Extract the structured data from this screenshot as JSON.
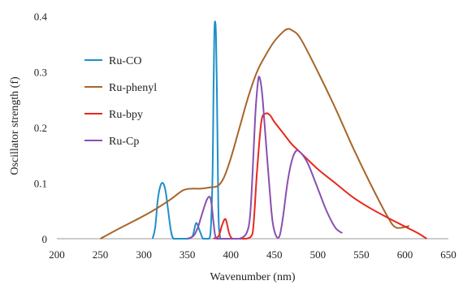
{
  "chart_data": {
    "type": "line",
    "xlabel": "Wavenumber (nm)",
    "ylabel": "Oscillator strength (f)",
    "xlim": [
      200,
      650
    ],
    "ylim": [
      0,
      0.4
    ],
    "x_ticks": [
      200,
      250,
      300,
      350,
      400,
      450,
      500,
      550,
      600,
      650
    ],
    "y_ticks": [
      0,
      0.1,
      0.2,
      0.3,
      0.4
    ],
    "grid": false,
    "legend_position": "left",
    "series": [
      {
        "name": "Ru-CO",
        "color": "#1f8fc8",
        "x": [
          310,
          313,
          316,
          319,
          322,
          325,
          328,
          331,
          334,
          340,
          350,
          356,
          360,
          364,
          368,
          372,
          375,
          377,
          379,
          380,
          381,
          382,
          383,
          384,
          385,
          386,
          388,
          390,
          395
        ],
        "y": [
          0,
          0.02,
          0.07,
          0.095,
          0.1,
          0.085,
          0.05,
          0.015,
          0,
          0,
          0,
          0.005,
          0.028,
          0.015,
          0,
          0,
          0,
          0.02,
          0.12,
          0.26,
          0.37,
          0.39,
          0.36,
          0.26,
          0.13,
          0.03,
          0,
          0,
          0
        ]
      },
      {
        "name": "Ru-phenyl",
        "color": "#a8652a",
        "x": [
          250,
          270,
          290,
          310,
          330,
          345,
          355,
          365,
          375,
          385,
          392,
          400,
          410,
          420,
          430,
          440,
          450,
          460,
          465,
          470,
          480,
          500,
          520,
          540,
          560,
          580,
          590,
          605
        ],
        "y": [
          0,
          0.017,
          0.033,
          0.05,
          0.07,
          0.087,
          0.09,
          0.09,
          0.092,
          0.095,
          0.11,
          0.145,
          0.2,
          0.255,
          0.3,
          0.33,
          0.355,
          0.372,
          0.377,
          0.375,
          0.36,
          0.3,
          0.235,
          0.165,
          0.1,
          0.04,
          0.02,
          0.023
        ]
      },
      {
        "name": "Ru-bpy",
        "color": "#e8281e",
        "x": [
          380,
          386,
          390,
          394,
          398,
          402,
          410,
          418,
          425,
          430,
          435,
          440,
          445,
          450,
          460,
          470,
          480,
          500,
          520,
          540,
          560,
          580,
          600,
          615,
          625
        ],
        "y": [
          0,
          0.005,
          0.025,
          0.035,
          0.01,
          0,
          0,
          0,
          0.01,
          0.12,
          0.21,
          0.225,
          0.222,
          0.21,
          0.19,
          0.17,
          0.155,
          0.125,
          0.1,
          0.075,
          0.055,
          0.038,
          0.022,
          0.01,
          0
        ]
      },
      {
        "name": "Ru-Cp",
        "color": "#8a4fb0",
        "x": [
          350,
          357,
          362,
          366,
          370,
          373,
          376,
          378,
          380,
          383,
          390,
          400,
          410,
          418,
          422,
          425,
          428,
          431,
          433,
          436,
          440,
          445,
          448,
          452,
          456,
          460,
          465,
          470,
          475,
          480,
          485,
          490,
          500,
          510,
          520,
          528
        ],
        "y": [
          0,
          0.005,
          0.02,
          0.04,
          0.06,
          0.072,
          0.075,
          0.06,
          0.03,
          0,
          0,
          0,
          0,
          0.01,
          0.04,
          0.12,
          0.22,
          0.28,
          0.29,
          0.26,
          0.18,
          0.08,
          0.03,
          0.005,
          0.005,
          0.04,
          0.1,
          0.14,
          0.158,
          0.155,
          0.145,
          0.13,
          0.09,
          0.05,
          0.02,
          0.01
        ]
      }
    ]
  }
}
